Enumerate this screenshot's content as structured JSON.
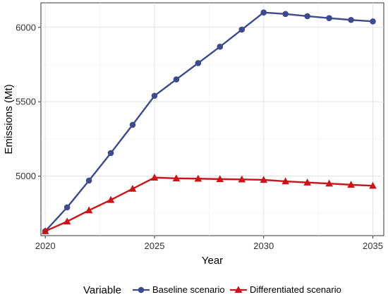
{
  "chart_data": {
    "type": "line",
    "title": "",
    "xlabel": "Year",
    "ylabel": "Emissions (Mt)",
    "xlim": [
      2019.8,
      2035.5
    ],
    "ylim": [
      4600,
      6165
    ],
    "x_ticks": [
      2020,
      2025,
      2030,
      2035
    ],
    "y_ticks": [
      5000,
      5500,
      6000
    ],
    "grid": true,
    "legend": {
      "title": "Variable",
      "placement": "bottom"
    },
    "x": [
      2020,
      2021,
      2022,
      2023,
      2024,
      2025,
      2026,
      2027,
      2028,
      2029,
      2030,
      2031,
      2032,
      2033,
      2034,
      2035
    ],
    "series": [
      {
        "name": "Baseline scenario",
        "color": "#3d4a8b",
        "marker": "circle",
        "values": [
          4630,
          4790,
          4970,
          5155,
          5345,
          5540,
          5650,
          5760,
          5870,
          5985,
          6100,
          6090,
          6075,
          6062,
          6050,
          6040
        ]
      },
      {
        "name": "Differentiated scenario",
        "color": "#cc1418",
        "marker": "triangle",
        "values": [
          4630,
          4695,
          4770,
          4840,
          4915,
          4990,
          4985,
          4983,
          4980,
          4978,
          4975,
          4965,
          4957,
          4950,
          4942,
          4935
        ]
      }
    ]
  }
}
